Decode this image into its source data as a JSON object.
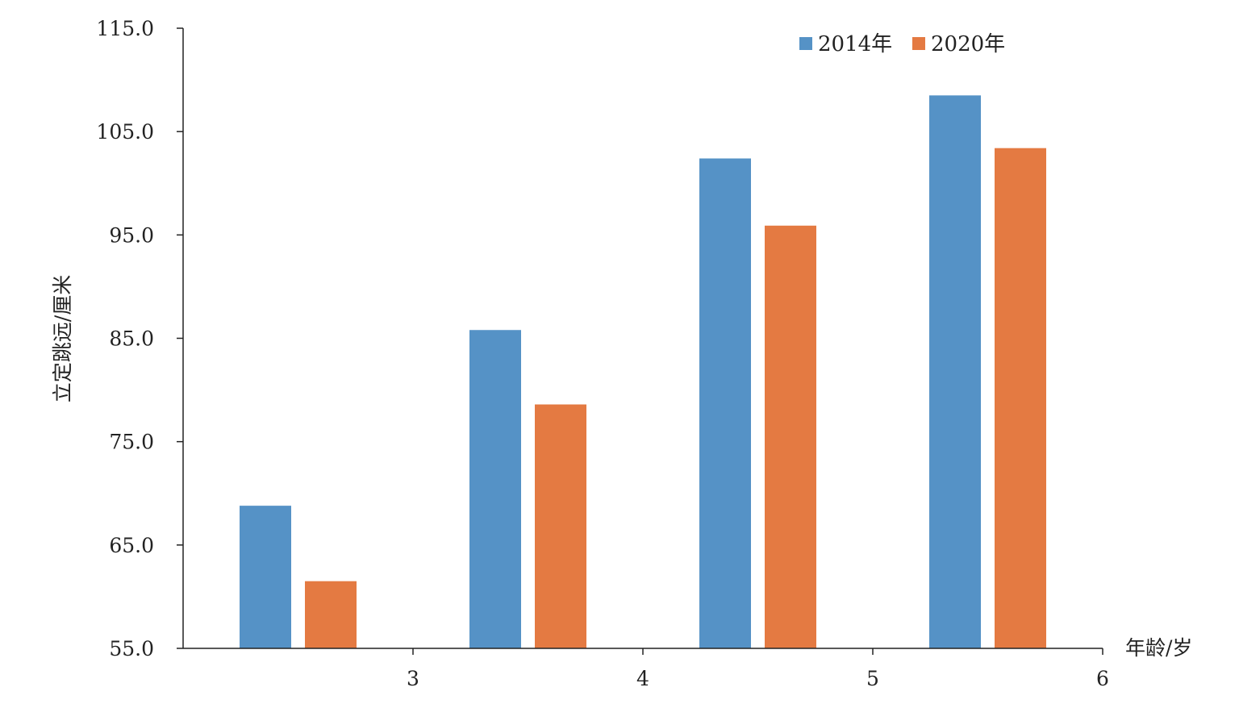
{
  "chart_data": {
    "type": "bar",
    "title": "",
    "ylabel": "立定跳远/厘米",
    "xlabel": "年龄/岁",
    "ylim": [
      55.0,
      115.0
    ],
    "y_ticks": [
      "55.0",
      "65.0",
      "75.0",
      "85.0",
      "95.0",
      "105.0",
      "115.0"
    ],
    "x_ticks": [
      "3",
      "4",
      "5",
      "6"
    ],
    "x_range": [
      2,
      6
    ],
    "legend_position": "top-right",
    "grid": false,
    "groups": [
      {
        "x_start": 2,
        "x_end": 3
      },
      {
        "x_start": 3,
        "x_end": 4
      },
      {
        "x_start": 4,
        "x_end": 5
      },
      {
        "x_start": 5,
        "x_end": 6
      }
    ],
    "series": [
      {
        "name": "2014年",
        "color": "#5592C6",
        "values": [
          68.8,
          85.8,
          102.4,
          108.5
        ]
      },
      {
        "name": "2020年",
        "color": "#E47A42",
        "values": [
          61.5,
          78.6,
          95.9,
          103.4
        ]
      }
    ]
  }
}
